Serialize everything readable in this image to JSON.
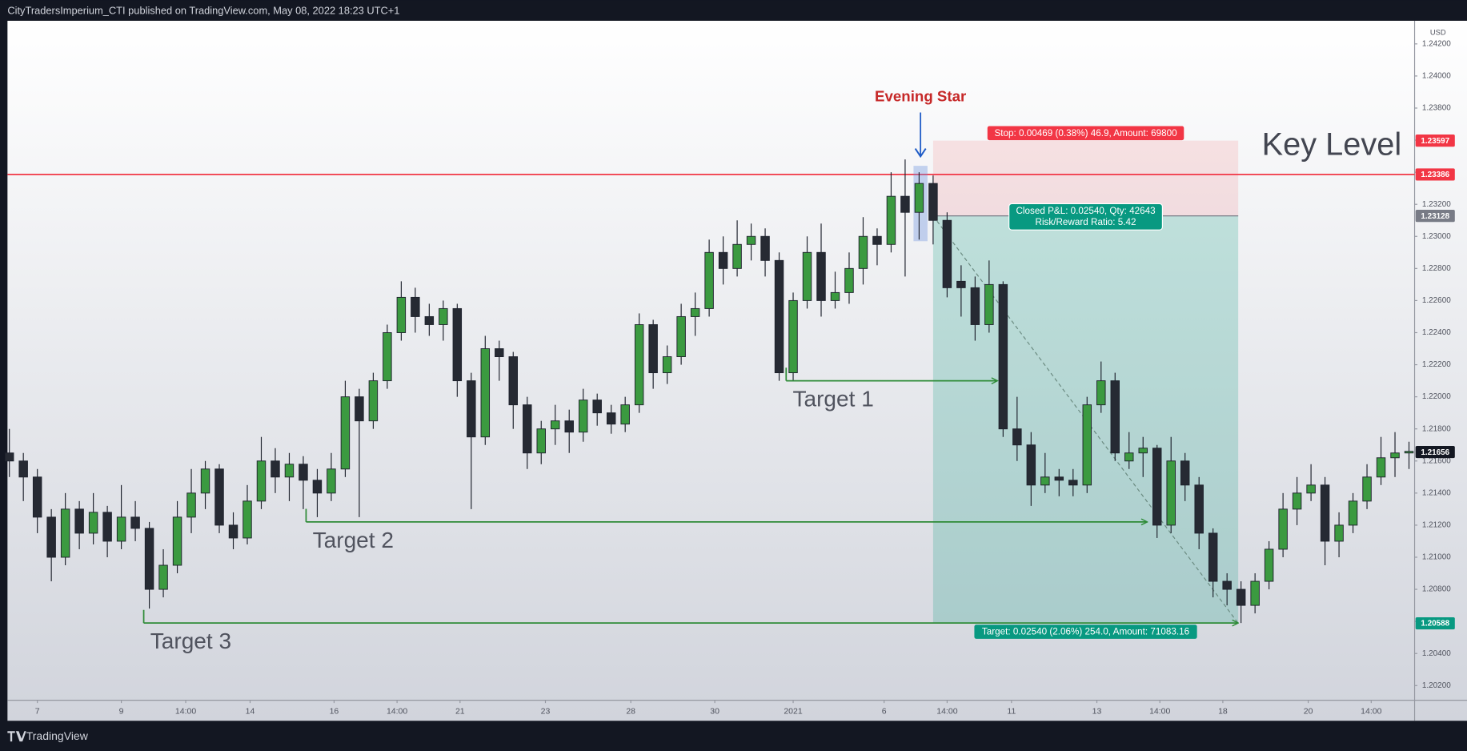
{
  "header": {
    "text": "CityTradersImperium_CTI published on TradingView.com, May 08, 2022 18:23 UTC+1"
  },
  "footer": {
    "brand": "TradingView"
  },
  "chart_data": {
    "type": "candlestick",
    "currency": "USD",
    "ylim": [
      1.2012,
      1.2435
    ],
    "yticks": [
      {
        "value": 1.242,
        "label": "1.24200"
      },
      {
        "value": 1.24,
        "label": "1.24000"
      },
      {
        "value": 1.238,
        "label": "1.23800"
      },
      {
        "value": 1.236,
        "label": "1.23600"
      },
      {
        "value": 1.234,
        "label": "1.23400"
      },
      {
        "value": 1.232,
        "label": "1.23200"
      },
      {
        "value": 1.23,
        "label": "1.23000"
      },
      {
        "value": 1.228,
        "label": "1.22800"
      },
      {
        "value": 1.226,
        "label": "1.22600"
      },
      {
        "value": 1.224,
        "label": "1.22400"
      },
      {
        "value": 1.222,
        "label": "1.22200"
      },
      {
        "value": 1.22,
        "label": "1.22000"
      },
      {
        "value": 1.218,
        "label": "1.21800"
      },
      {
        "value": 1.216,
        "label": "1.21600"
      },
      {
        "value": 1.214,
        "label": "1.21400"
      },
      {
        "value": 1.212,
        "label": "1.21200"
      },
      {
        "value": 1.21,
        "label": "1.21000"
      },
      {
        "value": 1.208,
        "label": "1.20800"
      },
      {
        "value": 1.206,
        "label": "1.20600"
      },
      {
        "value": 1.204,
        "label": "1.20400"
      },
      {
        "value": 1.202,
        "label": "1.20200"
      }
    ],
    "xticks": [
      {
        "value": 2,
        "label": "7"
      },
      {
        "value": 8,
        "label": "9"
      },
      {
        "value": 12.6,
        "label": "14:00"
      },
      {
        "value": 17.2,
        "label": "14"
      },
      {
        "value": 23.2,
        "label": "16"
      },
      {
        "value": 27.7,
        "label": "14:00"
      },
      {
        "value": 32.2,
        "label": "21"
      },
      {
        "value": 38.3,
        "label": "23"
      },
      {
        "value": 44.4,
        "label": "28"
      },
      {
        "value": 50.4,
        "label": "30"
      },
      {
        "value": 56,
        "label": "2021"
      },
      {
        "value": 62.5,
        "label": "6"
      },
      {
        "value": 67,
        "label": "14:00"
      },
      {
        "value": 71.6,
        "label": "11"
      },
      {
        "value": 77.7,
        "label": "13"
      },
      {
        "value": 82.2,
        "label": "14:00"
      },
      {
        "value": 86.7,
        "label": "18"
      },
      {
        "value": 92.8,
        "label": "20"
      },
      {
        "value": 97.3,
        "label": "14:00"
      }
    ],
    "up_color": "#3b9a40",
    "down_color": "#262a33",
    "candles": [
      [
        1.2165,
        1.218,
        1.215,
        1.216
      ],
      [
        1.216,
        1.2165,
        1.2135,
        1.215
      ],
      [
        1.215,
        1.2155,
        1.2115,
        1.2125
      ],
      [
        1.2125,
        1.213,
        1.2085,
        1.21
      ],
      [
        1.21,
        1.214,
        1.2095,
        1.213
      ],
      [
        1.213,
        1.2135,
        1.2105,
        1.2115
      ],
      [
        1.2115,
        1.214,
        1.2108,
        1.2128
      ],
      [
        1.2128,
        1.2132,
        1.21,
        1.211
      ],
      [
        1.211,
        1.2145,
        1.2105,
        1.2125
      ],
      [
        1.2125,
        1.2135,
        1.211,
        1.2118
      ],
      [
        1.2118,
        1.2122,
        1.2068,
        1.208
      ],
      [
        1.208,
        1.2105,
        1.2075,
        1.2095
      ],
      [
        1.2095,
        1.2135,
        1.209,
        1.2125
      ],
      [
        1.2125,
        1.2155,
        1.2115,
        1.214
      ],
      [
        1.214,
        1.216,
        1.213,
        1.2155
      ],
      [
        1.2155,
        1.2158,
        1.2115,
        1.212
      ],
      [
        1.212,
        1.2128,
        1.2105,
        1.2112
      ],
      [
        1.2112,
        1.2145,
        1.2108,
        1.2135
      ],
      [
        1.2135,
        1.2175,
        1.213,
        1.216
      ],
      [
        1.216,
        1.2168,
        1.214,
        1.215
      ],
      [
        1.215,
        1.2165,
        1.2135,
        1.2158
      ],
      [
        1.2158,
        1.2163,
        1.213,
        1.2148
      ],
      [
        1.2148,
        1.2155,
        1.2125,
        1.214
      ],
      [
        1.214,
        1.2165,
        1.2135,
        1.2155
      ],
      [
        1.2155,
        1.221,
        1.215,
        1.22
      ],
      [
        1.22,
        1.2205,
        1.2125,
        1.2185
      ],
      [
        1.2185,
        1.2215,
        1.218,
        1.221
      ],
      [
        1.221,
        1.2245,
        1.2205,
        1.224
      ],
      [
        1.224,
        1.2272,
        1.2235,
        1.2262
      ],
      [
        1.2262,
        1.2268,
        1.224,
        1.225
      ],
      [
        1.225,
        1.2258,
        1.2238,
        1.2245
      ],
      [
        1.2245,
        1.226,
        1.2235,
        1.2255
      ],
      [
        1.2255,
        1.2258,
        1.22,
        1.221
      ],
      [
        1.221,
        1.2215,
        1.213,
        1.2175
      ],
      [
        1.2175,
        1.2238,
        1.217,
        1.223
      ],
      [
        1.223,
        1.2235,
        1.221,
        1.2225
      ],
      [
        1.2225,
        1.2228,
        1.218,
        1.2195
      ],
      [
        1.2195,
        1.22,
        1.2155,
        1.2165
      ],
      [
        1.2165,
        1.2185,
        1.2158,
        1.218
      ],
      [
        1.218,
        1.2195,
        1.217,
        1.2185
      ],
      [
        1.2185,
        1.2192,
        1.2165,
        1.2178
      ],
      [
        1.2178,
        1.2205,
        1.2172,
        1.2198
      ],
      [
        1.2198,
        1.2202,
        1.2182,
        1.219
      ],
      [
        1.219,
        1.2195,
        1.2177,
        1.2183
      ],
      [
        1.2183,
        1.22,
        1.2178,
        1.2195
      ],
      [
        1.2195,
        1.2252,
        1.219,
        1.2245
      ],
      [
        1.2245,
        1.2248,
        1.2205,
        1.2215
      ],
      [
        1.2215,
        1.2232,
        1.2208,
        1.2225
      ],
      [
        1.2225,
        1.2258,
        1.222,
        1.225
      ],
      [
        1.225,
        1.2265,
        1.2238,
        1.2255
      ],
      [
        1.2255,
        1.2298,
        1.225,
        1.229
      ],
      [
        1.229,
        1.23,
        1.227,
        1.228
      ],
      [
        1.228,
        1.231,
        1.2275,
        1.2295
      ],
      [
        1.2295,
        1.2308,
        1.2285,
        1.23
      ],
      [
        1.23,
        1.2305,
        1.2275,
        1.2285
      ],
      [
        1.2285,
        1.229,
        1.221,
        1.2215
      ],
      [
        1.2215,
        1.2265,
        1.221,
        1.226
      ],
      [
        1.226,
        1.23,
        1.2255,
        1.229
      ],
      [
        1.229,
        1.2308,
        1.225,
        1.226
      ],
      [
        1.226,
        1.2278,
        1.2255,
        1.2265
      ],
      [
        1.2265,
        1.229,
        1.2258,
        1.228
      ],
      [
        1.228,
        1.2312,
        1.227,
        1.23
      ],
      [
        1.23,
        1.2305,
        1.2282,
        1.2295
      ],
      [
        1.2295,
        1.234,
        1.229,
        1.2325
      ],
      [
        1.2325,
        1.2348,
        1.2275,
        1.2315
      ],
      [
        1.2315,
        1.234,
        1.2298,
        1.2333
      ],
      [
        1.2333,
        1.2338,
        1.2295,
        1.231
      ],
      [
        1.231,
        1.2315,
        1.2262,
        1.2268
      ],
      [
        1.2272,
        1.2282,
        1.225,
        1.2268
      ],
      [
        1.2268,
        1.2275,
        1.2235,
        1.2245
      ],
      [
        1.2245,
        1.2285,
        1.224,
        1.227
      ],
      [
        1.227,
        1.2272,
        1.2175,
        1.218
      ],
      [
        1.218,
        1.22,
        1.216,
        1.217
      ],
      [
        1.217,
        1.2178,
        1.2132,
        1.2145
      ],
      [
        1.2145,
        1.2165,
        1.214,
        1.215
      ],
      [
        1.215,
        1.2155,
        1.2138,
        1.2148
      ],
      [
        1.2148,
        1.2155,
        1.2138,
        1.2145
      ],
      [
        1.2145,
        1.22,
        1.214,
        1.2195
      ],
      [
        1.2195,
        1.2222,
        1.219,
        1.221
      ],
      [
        1.221,
        1.2215,
        1.216,
        1.2165
      ],
      [
        1.216,
        1.2178,
        1.2155,
        1.2165
      ],
      [
        1.2165,
        1.2175,
        1.215,
        1.2168
      ],
      [
        1.2168,
        1.217,
        1.2112,
        1.212
      ],
      [
        1.212,
        1.2175,
        1.2115,
        1.216
      ],
      [
        1.216,
        1.2165,
        1.2135,
        1.2145
      ],
      [
        1.2145,
        1.215,
        1.2105,
        1.2115
      ],
      [
        1.2115,
        1.2118,
        1.2075,
        1.2085
      ],
      [
        1.2085,
        1.209,
        1.207,
        1.208
      ],
      [
        1.208,
        1.2085,
        1.2059,
        1.207
      ],
      [
        1.207,
        1.209,
        1.2065,
        1.2085
      ],
      [
        1.2085,
        1.211,
        1.208,
        1.2105
      ],
      [
        1.2105,
        1.214,
        1.21,
        1.213
      ],
      [
        1.213,
        1.215,
        1.212,
        1.214
      ],
      [
        1.214,
        1.2158,
        1.2135,
        1.2145
      ],
      [
        1.2145,
        1.215,
        1.2095,
        1.211
      ],
      [
        1.211,
        1.2128,
        1.21,
        1.212
      ],
      [
        1.212,
        1.214,
        1.2115,
        1.2135
      ],
      [
        1.2135,
        1.2158,
        1.213,
        1.215
      ],
      [
        1.215,
        1.2175,
        1.2145,
        1.2162
      ],
      [
        1.2162,
        1.2178,
        1.215,
        1.2165
      ],
      [
        1.2165,
        1.2172,
        1.2155,
        1.2166
      ]
    ],
    "key_level": {
      "label": "Key Level",
      "price": 1.23386,
      "color": "#f23645"
    },
    "last_price": 1.21656,
    "pattern": {
      "label": "Evening Star",
      "color": "#c62828",
      "arrow_color": "#1e5bc6",
      "from": 64.6,
      "to": 65.6,
      "top": 1.2344,
      "bottom": 1.2297
    },
    "position": {
      "start": 66,
      "end": 87.8,
      "entry": 1.23128,
      "stop": 1.23597,
      "target": 1.20588,
      "stop_label": "Stop: 0.00469 (0.38%) 46.9, Amount: 69800",
      "pnl_label": "Closed P&L: 0.02540, Qty: 42643",
      "rr_label": "Risk/Reward Ratio: 5.42",
      "target_label": "Target: 0.02540 (2.06%) 254.0, Amount: 71083.16"
    },
    "targets": [
      {
        "label": "Target 1",
        "price": 1.221,
        "from": 55.5,
        "to": 70.6
      },
      {
        "label": "Target 2",
        "price": 1.2122,
        "from": 21.2,
        "to": 81.3
      },
      {
        "label": "Target 3",
        "price": 1.2059,
        "from": 9.6,
        "to": 87.8
      }
    ]
  }
}
